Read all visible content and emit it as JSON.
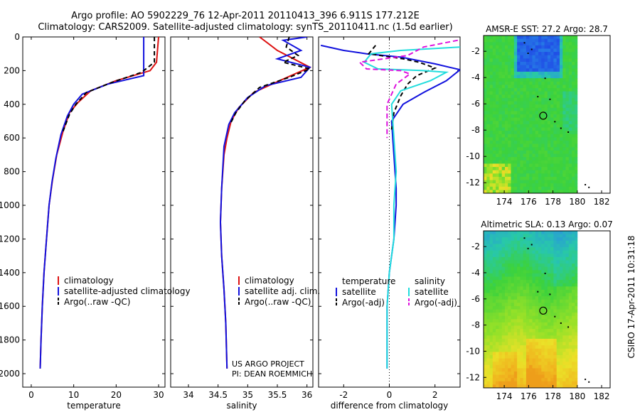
{
  "title_line1": "Argo profile: AO 5902229_76 12-Apr-2011 20110413_396 6.911S 177.212E",
  "title_line2": "Climatology: CARS2009. Satellite-adjusted climatology: synTS_20110411.nc (1.5d earlier)",
  "side_label": "CSIRO 17-Apr-2011 10:31:18",
  "project_line1": "US ARGO PROJECT",
  "project_line2": "PI: DEAN ROEMMICH",
  "colors": {
    "climatology": "#dd1111",
    "satellite": "#1111dd",
    "argo": "#000000",
    "satellite_sal": "#22dddd",
    "argo_sal": "#dd11dd"
  },
  "chart_data": [
    {
      "type": "line",
      "id": "temperature",
      "xlabel": "temperature",
      "ylabel": "",
      "xlim": [
        -2,
        31.5
      ],
      "ylim": [
        0,
        2080
      ],
      "xticks": [
        "0",
        "10",
        "20",
        "30"
      ],
      "xtick_values": [
        0,
        10,
        20,
        30
      ],
      "yticks": [
        "0",
        "200",
        "400",
        "600",
        "800",
        "1000",
        "1200",
        "1400",
        "1600",
        "1800",
        "2000"
      ],
      "ytick_values": [
        0,
        200,
        400,
        600,
        800,
        1000,
        1200,
        1400,
        1600,
        1800,
        2000
      ],
      "legend": [
        "climatology",
        "satellite-adjusted climatology",
        "Argo(..raw -QC)"
      ],
      "series": [
        {
          "name": "climatology",
          "color": "climatology",
          "dash": "",
          "points": [
            [
              30,
              0
            ],
            [
              29.5,
              150
            ],
            [
              28,
              200
            ],
            [
              20,
              260
            ],
            [
              14,
              320
            ],
            [
              11,
              390
            ],
            [
              9,
              450
            ],
            [
              7.5,
              560
            ],
            [
              6,
              700
            ],
            [
              5,
              850
            ],
            [
              4.2,
              1000
            ],
            [
              3.6,
              1200
            ],
            [
              3,
              1400
            ],
            [
              2.6,
              1600
            ],
            [
              2.3,
              1800
            ],
            [
              2.1,
              1970
            ]
          ]
        },
        {
          "name": "satellite-adjusted climatology",
          "color": "satellite",
          "dash": "",
          "points": [
            [
              26.5,
              0
            ],
            [
              26.5,
              230
            ],
            [
              18,
              280
            ],
            [
              12,
              340
            ],
            [
              10,
              400
            ],
            [
              8.5,
              470
            ],
            [
              7,
              580
            ],
            [
              5.8,
              720
            ],
            [
              4.9,
              860
            ],
            [
              4.2,
              1000
            ],
            [
              3.6,
              1200
            ],
            [
              3,
              1400
            ],
            [
              2.6,
              1600
            ],
            [
              2.3,
              1800
            ],
            [
              2.1,
              1970
            ]
          ]
        },
        {
          "name": "Argo(..raw -QC)",
          "color": "argo",
          "dash": "6,4",
          "points": [
            [
              29,
              0
            ],
            [
              29,
              150
            ],
            [
              26,
              210
            ],
            [
              19,
              270
            ],
            [
              13,
              330
            ],
            [
              10.5,
              400
            ],
            [
              9,
              460
            ],
            [
              7.5,
              560
            ]
          ]
        }
      ]
    },
    {
      "type": "line",
      "id": "salinity",
      "xlabel": "salinity",
      "ylabel": "",
      "xlim": [
        33.7,
        36.1
      ],
      "ylim": [
        0,
        2080
      ],
      "xticks": [
        "34",
        "34.5",
        "35",
        "35.5",
        "36"
      ],
      "xtick_values": [
        34,
        34.5,
        35,
        35.5,
        36
      ],
      "legend": [
        "climatology",
        "satellite adj. clim.",
        "Argo(..raw -QC)"
      ],
      "series": [
        {
          "name": "climatology",
          "color": "climatology",
          "dash": "",
          "points": [
            [
              35.2,
              0
            ],
            [
              35.5,
              80
            ],
            [
              36.05,
              180
            ],
            [
              35.6,
              250
            ],
            [
              35.1,
              330
            ],
            [
              34.85,
              420
            ],
            [
              34.72,
              500
            ],
            [
              34.65,
              600
            ],
            [
              34.6,
              700
            ],
            [
              34.56,
              900
            ],
            [
              34.54,
              1100
            ],
            [
              34.56,
              1300
            ],
            [
              34.6,
              1500
            ],
            [
              34.63,
              1700
            ],
            [
              34.65,
              1970
            ]
          ]
        },
        {
          "name": "satellite adj. clim.",
          "color": "satellite",
          "dash": "",
          "points": [
            [
              36.0,
              0
            ],
            [
              35.6,
              20
            ],
            [
              35.9,
              80
            ],
            [
              35.5,
              130
            ],
            [
              36.05,
              180
            ],
            [
              35.9,
              240
            ],
            [
              35.3,
              290
            ],
            [
              35.0,
              360
            ],
            [
              34.78,
              450
            ],
            [
              34.68,
              520
            ],
            [
              34.6,
              650
            ],
            [
              34.56,
              900
            ],
            [
              34.54,
              1100
            ],
            [
              34.56,
              1300
            ],
            [
              34.6,
              1500
            ],
            [
              34.63,
              1700
            ],
            [
              34.65,
              1970
            ]
          ]
        },
        {
          "name": "Argo(..raw -QC)",
          "color": "argo",
          "dash": "6,4",
          "points": [
            [
              35.7,
              0
            ],
            [
              35.65,
              60
            ],
            [
              35.85,
              110
            ],
            [
              35.6,
              150
            ],
            [
              36.05,
              190
            ],
            [
              35.7,
              240
            ],
            [
              35.2,
              300
            ],
            [
              34.95,
              380
            ],
            [
              34.8,
              450
            ],
            [
              34.7,
              520
            ]
          ]
        }
      ]
    },
    {
      "type": "line",
      "id": "difference",
      "xlabel": "difference from climatology",
      "ylabel": "",
      "xlim": [
        -3.1,
        3.1
      ],
      "ylim": [
        0,
        2080
      ],
      "xticks": [
        "-2",
        "0",
        "2"
      ],
      "xtick_values": [
        -2,
        0,
        2
      ],
      "legend": [
        "temperature",
        "satellite",
        "Argo(-adj)",
        "salinity",
        "satellite",
        "Argo(-adj)"
      ],
      "series": [
        {
          "name": "temperature satellite",
          "color": "satellite",
          "dash": "",
          "points": [
            [
              -3,
              50
            ],
            [
              -2,
              80
            ],
            [
              -1,
              100
            ],
            [
              0.5,
              120
            ],
            [
              2,
              160
            ],
            [
              3.1,
              195
            ],
            [
              2.5,
              260
            ],
            [
              1.5,
              330
            ],
            [
              0.6,
              400
            ],
            [
              0.1,
              500
            ],
            [
              0.2,
              700
            ],
            [
              0.3,
              900
            ],
            [
              0.3,
              1000
            ],
            [
              0.2,
              1200
            ],
            [
              0,
              1400
            ],
            [
              -0.1,
              1600
            ],
            [
              -0.1,
              1800
            ],
            [
              -0.1,
              1970
            ]
          ]
        },
        {
          "name": "temperature Argo(-adj)",
          "color": "argo",
          "dash": "6,4",
          "points": [
            [
              -0.6,
              50
            ],
            [
              -0.9,
              100
            ],
            [
              0.6,
              130
            ],
            [
              1.3,
              150
            ],
            [
              2,
              185
            ],
            [
              1.2,
              230
            ],
            [
              0.8,
              280
            ],
            [
              0.5,
              350
            ],
            [
              0.2,
              450
            ],
            [
              0.1,
              550
            ]
          ]
        },
        {
          "name": "salinity satellite",
          "color": "satellite_sal",
          "dash": "",
          "points": [
            [
              3.1,
              60
            ],
            [
              0.5,
              80
            ],
            [
              -0.8,
              100
            ],
            [
              -1.1,
              150
            ],
            [
              -0.5,
              190
            ],
            [
              1.5,
              200
            ],
            [
              2.5,
              210
            ],
            [
              1.8,
              260
            ],
            [
              0.5,
              320
            ],
            [
              0.1,
              400
            ],
            [
              0.2,
              600
            ],
            [
              0.3,
              800
            ],
            [
              0.2,
              1000
            ],
            [
              0.2,
              1200
            ],
            [
              0,
              1400
            ],
            [
              -0.1,
              1600
            ],
            [
              -0.1,
              1800
            ],
            [
              -0.1,
              1970
            ]
          ]
        },
        {
          "name": "salinity Argo(-adj)",
          "color": "argo_sal",
          "dash": "7,4",
          "points": [
            [
              3,
              20
            ],
            [
              1.5,
              60
            ],
            [
              0.8,
              110
            ],
            [
              -1.3,
              150
            ],
            [
              -1,
              190
            ],
            [
              0.5,
              200
            ],
            [
              0.9,
              220
            ],
            [
              0.3,
              280
            ],
            [
              -0.1,
              400
            ],
            [
              -0.1,
              600
            ]
          ]
        }
      ]
    },
    {
      "type": "heatmap",
      "id": "sst_map",
      "title": "AMSR-E SST: 27.2  Argo: 28.7",
      "xlim": [
        172.3,
        182.7
      ],
      "ylim": [
        -12.8,
        -0.8
      ],
      "xticks": [
        "174",
        "176",
        "178",
        "180",
        "182"
      ],
      "xtick_values": [
        174,
        176,
        178,
        180,
        182
      ],
      "yticks": [
        "-2",
        "-4",
        "-6",
        "-8",
        "-10",
        "-12"
      ],
      "ytick_values": [
        -2,
        -4,
        -6,
        -8,
        -10,
        -12
      ],
      "marker": [
        177.2,
        -6.9
      ]
    },
    {
      "type": "heatmap",
      "id": "sla_map",
      "title": "Altimetric SLA: 0.13  Argo: 0.07",
      "xlim": [
        172.3,
        182.7
      ],
      "ylim": [
        -12.8,
        -0.8
      ],
      "xticks": [
        "174",
        "176",
        "178",
        "180",
        "182"
      ],
      "xtick_values": [
        174,
        176,
        178,
        180,
        182
      ],
      "yticks": [
        "-2",
        "-4",
        "-6",
        "-8",
        "-10",
        "-12"
      ],
      "ytick_values": [
        -2,
        -4,
        -6,
        -8,
        -10,
        -12
      ],
      "marker": [
        177.2,
        -6.9
      ]
    }
  ]
}
